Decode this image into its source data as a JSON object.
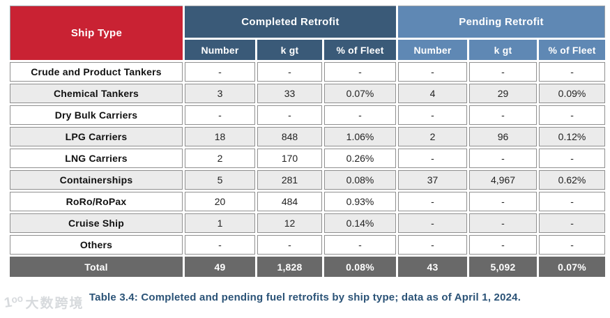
{
  "table": {
    "header": {
      "ship_type_label": "Ship Type",
      "groups": [
        {
          "label": "Completed Retrofit",
          "color": "#3a5a78"
        },
        {
          "label": "Pending Retrofit",
          "color": "#5f88b4"
        }
      ],
      "subcolumns": [
        "Number",
        "k gt",
        "% of Fleet"
      ]
    },
    "rows": [
      {
        "ship_type": "Crude and Product Tankers",
        "completed": [
          "-",
          "-",
          "-"
        ],
        "pending": [
          "-",
          "-",
          "-"
        ]
      },
      {
        "ship_type": "Chemical Tankers",
        "completed": [
          "3",
          "33",
          "0.07%"
        ],
        "pending": [
          "4",
          "29",
          "0.09%"
        ]
      },
      {
        "ship_type": "Dry Bulk Carriers",
        "completed": [
          "-",
          "-",
          "-"
        ],
        "pending": [
          "-",
          "-",
          "-"
        ]
      },
      {
        "ship_type": "LPG Carriers",
        "completed": [
          "18",
          "848",
          "1.06%"
        ],
        "pending": [
          "2",
          "96",
          "0.12%"
        ]
      },
      {
        "ship_type": "LNG Carriers",
        "completed": [
          "2",
          "170",
          "0.26%"
        ],
        "pending": [
          "-",
          "-",
          "-"
        ]
      },
      {
        "ship_type": "Containerships",
        "completed": [
          "5",
          "281",
          "0.08%"
        ],
        "pending": [
          "37",
          "4,967",
          "0.62%"
        ]
      },
      {
        "ship_type": "RoRo/RoPax",
        "completed": [
          "20",
          "484",
          "0.93%"
        ],
        "pending": [
          "-",
          "-",
          "-"
        ]
      },
      {
        "ship_type": "Cruise Ship",
        "completed": [
          "1",
          "12",
          "0.14%"
        ],
        "pending": [
          "-",
          "-",
          "-"
        ]
      },
      {
        "ship_type": "Others",
        "completed": [
          "-",
          "-",
          "-"
        ],
        "pending": [
          "-",
          "-",
          "-"
        ]
      }
    ],
    "total": {
      "label": "Total",
      "completed": [
        "49",
        "1,828",
        "0.08%"
      ],
      "pending": [
        "43",
        "5,092",
        "0.07%"
      ]
    }
  },
  "caption": "Table 3.4: Completed and pending fuel retrofits by ship type; data as of April 1, 2024.",
  "watermark": {
    "logo_glyph": "1ᵒᵒ",
    "text": "大数跨境"
  },
  "colors": {
    "ship_type_header": "#c92233",
    "completed_header": "#3a5a78",
    "pending_header": "#5f88b4",
    "total_row": "#696969",
    "alt_row": "#ebebeb",
    "cell_border": "#8f8f8f",
    "caption_text": "#2b5377"
  }
}
